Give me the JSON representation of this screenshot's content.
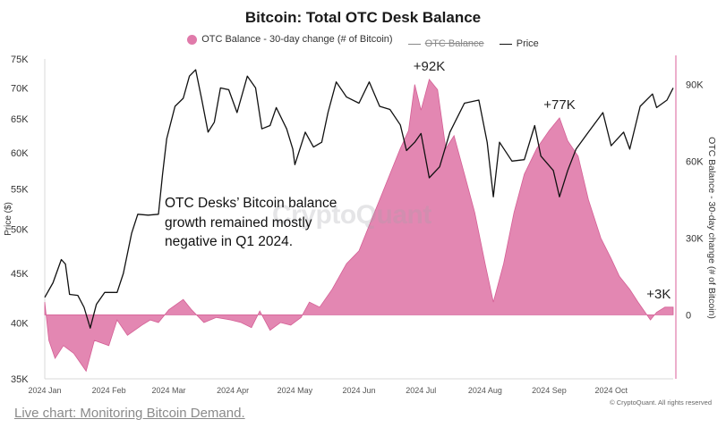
{
  "chart_data": {
    "type": "area",
    "title": "Bitcoin: Total OTC Desk Balance",
    "legend": [
      {
        "label": "OTC Balance - 30-day change (# of Bitcoin)",
        "color": "#e07aaa",
        "style": "area"
      },
      {
        "label": "OTC Balance",
        "color": "#888888",
        "style": "line",
        "struck": true
      },
      {
        "label": "Price",
        "color": "#111111",
        "style": "line"
      }
    ],
    "x_ticks": [
      "2024 Jan",
      "2024 Feb",
      "2024 Mar",
      "2024 Apr",
      "2024 May",
      "2024 Jun",
      "2024 Jul",
      "2024 Aug",
      "2024 Sep",
      "2024 Oct"
    ],
    "x_range": [
      "2024-01-01",
      "2024-10-31"
    ],
    "y_left": {
      "label": "Price ($)",
      "ticks": [
        "35K",
        "40K",
        "45K",
        "50K",
        "55K",
        "60K",
        "65K",
        "70K",
        "75K"
      ],
      "range": [
        35000,
        75000
      ],
      "scale": "log"
    },
    "y_right": {
      "label": "OTC Balance - 30-day change (# of Bitcoin)",
      "ticks": [
        "0",
        "30K",
        "60K",
        "90K"
      ],
      "range": [
        -25000,
        100000
      ]
    },
    "series": [
      {
        "name": "Price",
        "color": "#111111",
        "points": [
          [
            "2024-01-01",
            42500
          ],
          [
            "2024-01-05",
            44000
          ],
          [
            "2024-01-09",
            46500
          ],
          [
            "2024-01-11",
            46000
          ],
          [
            "2024-01-13",
            42800
          ],
          [
            "2024-01-17",
            42700
          ],
          [
            "2024-01-20",
            41500
          ],
          [
            "2024-01-23",
            39500
          ],
          [
            "2024-01-26",
            41800
          ],
          [
            "2024-01-30",
            43000
          ],
          [
            "2024-02-05",
            43000
          ],
          [
            "2024-02-08",
            45000
          ],
          [
            "2024-02-12",
            49500
          ],
          [
            "2024-02-15",
            51800
          ],
          [
            "2024-02-20",
            51700
          ],
          [
            "2024-02-25",
            51800
          ],
          [
            "2024-02-27",
            57000
          ],
          [
            "2024-02-29",
            62000
          ],
          [
            "2024-03-04",
            67000
          ],
          [
            "2024-03-08",
            68300
          ],
          [
            "2024-03-11",
            72000
          ],
          [
            "2024-03-14",
            73100
          ],
          [
            "2024-03-17",
            68000
          ],
          [
            "2024-03-20",
            63000
          ],
          [
            "2024-03-23",
            64500
          ],
          [
            "2024-03-26",
            70000
          ],
          [
            "2024-03-30",
            69700
          ],
          [
            "2024-04-03",
            66000
          ],
          [
            "2024-04-08",
            72000
          ],
          [
            "2024-04-12",
            70000
          ],
          [
            "2024-04-15",
            63500
          ],
          [
            "2024-04-19",
            64000
          ],
          [
            "2024-04-22",
            66800
          ],
          [
            "2024-04-27",
            63500
          ],
          [
            "2024-04-30",
            60500
          ],
          [
            "2024-05-01",
            58300
          ],
          [
            "2024-05-06",
            63000
          ],
          [
            "2024-05-10",
            60800
          ],
          [
            "2024-05-14",
            61500
          ],
          [
            "2024-05-17",
            66000
          ],
          [
            "2024-05-21",
            71000
          ],
          [
            "2024-05-26",
            68500
          ],
          [
            "2024-06-01",
            67500
          ],
          [
            "2024-06-06",
            71000
          ],
          [
            "2024-06-11",
            67000
          ],
          [
            "2024-06-16",
            66500
          ],
          [
            "2024-06-21",
            64100
          ],
          [
            "2024-06-24",
            60300
          ],
          [
            "2024-06-28",
            61500
          ],
          [
            "2024-07-01",
            62800
          ],
          [
            "2024-07-05",
            56500
          ],
          [
            "2024-07-10",
            58000
          ],
          [
            "2024-07-15",
            63000
          ],
          [
            "2024-07-22",
            67500
          ],
          [
            "2024-07-29",
            68000
          ],
          [
            "2024-08-02",
            61500
          ],
          [
            "2024-08-05",
            54000
          ],
          [
            "2024-08-08",
            61500
          ],
          [
            "2024-08-14",
            58800
          ],
          [
            "2024-08-20",
            59000
          ],
          [
            "2024-08-25",
            64000
          ],
          [
            "2024-08-28",
            59500
          ],
          [
            "2024-09-03",
            57500
          ],
          [
            "2024-09-06",
            54000
          ],
          [
            "2024-09-10",
            57500
          ],
          [
            "2024-09-14",
            60500
          ],
          [
            "2024-09-20",
            63000
          ],
          [
            "2024-09-27",
            66000
          ],
          [
            "2024-10-01",
            61000
          ],
          [
            "2024-10-07",
            63000
          ],
          [
            "2024-10-10",
            60500
          ],
          [
            "2024-10-15",
            67000
          ],
          [
            "2024-10-21",
            69000
          ],
          [
            "2024-10-23",
            66800
          ],
          [
            "2024-10-28",
            68000
          ],
          [
            "2024-10-31",
            70000
          ]
        ]
      },
      {
        "name": "OTC Balance - 30-day change (# of Bitcoin)",
        "color": "#e07aaa",
        "points": [
          [
            "2024-01-01",
            5000
          ],
          [
            "2024-01-03",
            -10000
          ],
          [
            "2024-01-06",
            -17000
          ],
          [
            "2024-01-10",
            -12000
          ],
          [
            "2024-01-15",
            -15000
          ],
          [
            "2024-01-21",
            -22000
          ],
          [
            "2024-01-25",
            -10000
          ],
          [
            "2024-02-01",
            -12000
          ],
          [
            "2024-02-05",
            -2000
          ],
          [
            "2024-02-10",
            -8000
          ],
          [
            "2024-02-17",
            -4000
          ],
          [
            "2024-02-21",
            -2000
          ],
          [
            "2024-02-25",
            -3000
          ],
          [
            "2024-03-01",
            2000
          ],
          [
            "2024-03-08",
            6000
          ],
          [
            "2024-03-12",
            2000
          ],
          [
            "2024-03-18",
            -3000
          ],
          [
            "2024-03-24",
            -1000
          ],
          [
            "2024-03-31",
            -2000
          ],
          [
            "2024-04-05",
            -3000
          ],
          [
            "2024-04-10",
            -5000
          ],
          [
            "2024-04-14",
            1500
          ],
          [
            "2024-04-19",
            -6000
          ],
          [
            "2024-04-24",
            -3000
          ],
          [
            "2024-04-29",
            -4000
          ],
          [
            "2024-05-04",
            -1000
          ],
          [
            "2024-05-08",
            5000
          ],
          [
            "2024-05-13",
            3000
          ],
          [
            "2024-05-19",
            10000
          ],
          [
            "2024-05-26",
            20000
          ],
          [
            "2024-06-01",
            25000
          ],
          [
            "2024-06-06",
            35000
          ],
          [
            "2024-06-11",
            45000
          ],
          [
            "2024-06-16",
            55000
          ],
          [
            "2024-06-21",
            65000
          ],
          [
            "2024-06-25",
            72000
          ],
          [
            "2024-06-28",
            90000
          ],
          [
            "2024-07-01",
            80000
          ],
          [
            "2024-07-05",
            92000
          ],
          [
            "2024-07-09",
            88000
          ],
          [
            "2024-07-13",
            65000
          ],
          [
            "2024-07-17",
            70000
          ],
          [
            "2024-07-22",
            55000
          ],
          [
            "2024-07-27",
            40000
          ],
          [
            "2024-08-01",
            20000
          ],
          [
            "2024-08-05",
            5000
          ],
          [
            "2024-08-10",
            20000
          ],
          [
            "2024-08-15",
            40000
          ],
          [
            "2024-08-20",
            55000
          ],
          [
            "2024-08-26",
            65000
          ],
          [
            "2024-09-01",
            72000
          ],
          [
            "2024-09-06",
            77000
          ],
          [
            "2024-09-10",
            68000
          ],
          [
            "2024-09-15",
            62000
          ],
          [
            "2024-09-20",
            45000
          ],
          [
            "2024-09-26",
            30000
          ],
          [
            "2024-10-01",
            22000
          ],
          [
            "2024-10-05",
            15000
          ],
          [
            "2024-10-10",
            10000
          ],
          [
            "2024-10-14",
            5000
          ],
          [
            "2024-10-20",
            -2000
          ],
          [
            "2024-10-23",
            1000
          ],
          [
            "2024-10-27",
            3000
          ],
          [
            "2024-10-31",
            3000
          ]
        ]
      }
    ],
    "annotations": {
      "peaks": [
        {
          "text": "+92K",
          "date": "2024-07-05",
          "value": 92000
        },
        {
          "text": "+77K",
          "date": "2024-09-06",
          "value": 77000
        },
        {
          "text": "+3K",
          "date": "2024-10-24",
          "value": 3000
        }
      ],
      "note": "OTC Desks’ Bitcoin balance growth remained mostly negative in Q1 2024."
    },
    "watermark": "CryptoQuant",
    "credit": "© CryptoQuant. All rights reserved",
    "grid": false
  },
  "footer": {
    "link_text": "Live chart: Monitoring Bitcoin Demand."
  }
}
